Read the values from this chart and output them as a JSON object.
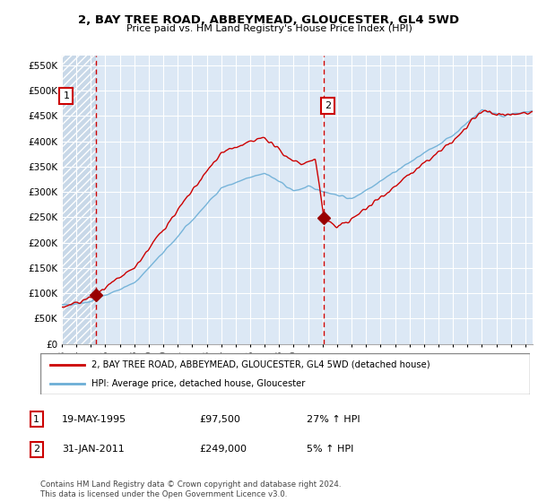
{
  "title": "2, BAY TREE ROAD, ABBEYMEAD, GLOUCESTER, GL4 5WD",
  "subtitle": "Price paid vs. HM Land Registry's House Price Index (HPI)",
  "ylim": [
    0,
    570000
  ],
  "yticks": [
    0,
    50000,
    100000,
    150000,
    200000,
    250000,
    300000,
    350000,
    400000,
    450000,
    500000,
    550000
  ],
  "ytick_labels": [
    "£0",
    "£50K",
    "£100K",
    "£150K",
    "£200K",
    "£250K",
    "£300K",
    "£350K",
    "£400K",
    "£450K",
    "£500K",
    "£550K"
  ],
  "hpi_color": "#6baed6",
  "price_color": "#cc0000",
  "vline_color": "#cc0000",
  "purchase1_date": 1995.38,
  "purchase1_price": 97500,
  "purchase1_label": "1",
  "purchase2_date": 2011.08,
  "purchase2_price": 249000,
  "purchase2_label": "2",
  "legend_line1": "2, BAY TREE ROAD, ABBEYMEAD, GLOUCESTER, GL4 5WD (detached house)",
  "legend_line2": "HPI: Average price, detached house, Gloucester",
  "table_row1": [
    "1",
    "19-MAY-1995",
    "£97,500",
    "27% ↑ HPI"
  ],
  "table_row2": [
    "2",
    "31-JAN-2011",
    "£249,000",
    "5% ↑ HPI"
  ],
  "footnote": "Contains HM Land Registry data © Crown copyright and database right 2024.\nThis data is licensed under the Open Government Licence v3.0.",
  "xmin": 1993.0,
  "xmax": 2025.5,
  "hatch_cutoff": 1995.38,
  "plot_bg": "#dce8f5"
}
